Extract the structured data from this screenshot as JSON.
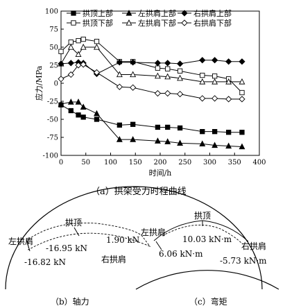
{
  "chart_data": {
    "type": "line",
    "xlabel": "时间/h",
    "ylabel": "应力/MPa",
    "xlim": [
      0,
      400
    ],
    "ylim": [
      -100,
      100
    ],
    "xticks": [
      0,
      50,
      100,
      150,
      200,
      250,
      300,
      350,
      400
    ],
    "yticks": [
      -100,
      -75,
      -50,
      -25,
      0,
      25,
      50,
      75,
      100
    ],
    "legend_position": "top-right",
    "caption": "（a）拱架受力时程曲线",
    "series": [
      {
        "name": "拱顶上部",
        "marker": "filled-square",
        "x": [
          0,
          20,
          35,
          45,
          72,
          118,
          145,
          195,
          215,
          240,
          285,
          310,
          338,
          365
        ],
        "y": [
          -30,
          -38,
          -44,
          -47,
          -50,
          -58,
          -57,
          -61,
          -61,
          -62,
          -67,
          -67,
          -68,
          -68
        ]
      },
      {
        "name": "拱顶下部",
        "marker": "open-square",
        "x": [
          0,
          20,
          35,
          45,
          72,
          118,
          145,
          195,
          215,
          240,
          285,
          310,
          338,
          365
        ],
        "y": [
          44,
          57,
          59,
          61,
          58,
          30,
          30,
          21,
          20,
          17,
          11,
          10,
          6,
          -13
        ]
      },
      {
        "name": "左拱肩上部",
        "marker": "filled-triangle",
        "x": [
          0,
          20,
          35,
          45,
          72,
          118,
          145,
          195,
          215,
          240,
          285,
          310,
          338,
          365
        ],
        "y": [
          -29,
          -26,
          -26,
          -33,
          -42,
          -78,
          -78,
          -80,
          -81,
          -83,
          -84,
          -86,
          -87,
          -88
        ]
      },
      {
        "name": "左拱肩下部",
        "marker": "open-triangle",
        "x": [
          0,
          20,
          35,
          45,
          72,
          118,
          145,
          195,
          215,
          240,
          285,
          310,
          338,
          365
        ],
        "y": [
          27,
          50,
          40,
          50,
          50,
          12,
          12,
          10,
          9,
          7,
          2,
          2,
          2,
          2
        ]
      },
      {
        "name": "右拱肩上部",
        "marker": "filled-diamond",
        "x": [
          0,
          20,
          35,
          45,
          72,
          118,
          145,
          195,
          215,
          240,
          285,
          310,
          338,
          365
        ],
        "y": [
          27,
          28,
          29,
          28,
          13,
          29,
          29,
          28,
          28,
          27,
          32,
          32,
          30,
          30
        ]
      },
      {
        "name": "右拱肩下部",
        "marker": "open-diamond",
        "x": [
          0,
          20,
          35,
          45,
          72,
          118,
          145,
          195,
          215,
          240,
          285,
          310,
          338,
          365
        ],
        "y": [
          6,
          12,
          25,
          26,
          15,
          -5,
          -6,
          -14,
          -14,
          -15,
          -21,
          -21,
          -22,
          -22
        ]
      }
    ]
  },
  "diagrams": {
    "axial": {
      "crown_label": "拱顶",
      "left_label": "左拱肩",
      "right_label": "右拱肩",
      "crown_value": "-16.95 kN",
      "left_value": "-16.82 kN",
      "right_value": "1.90 kN",
      "caption": "（b）轴力"
    },
    "moment": {
      "crown_label": "拱顶",
      "left_label": "左拱肩",
      "right_label": "右拱肩",
      "crown_value": "10.03 kN·m",
      "left_value": "6.06 kN·m",
      "right_value": "-5.73 kN·m",
      "caption": "（c）弯矩"
    }
  }
}
